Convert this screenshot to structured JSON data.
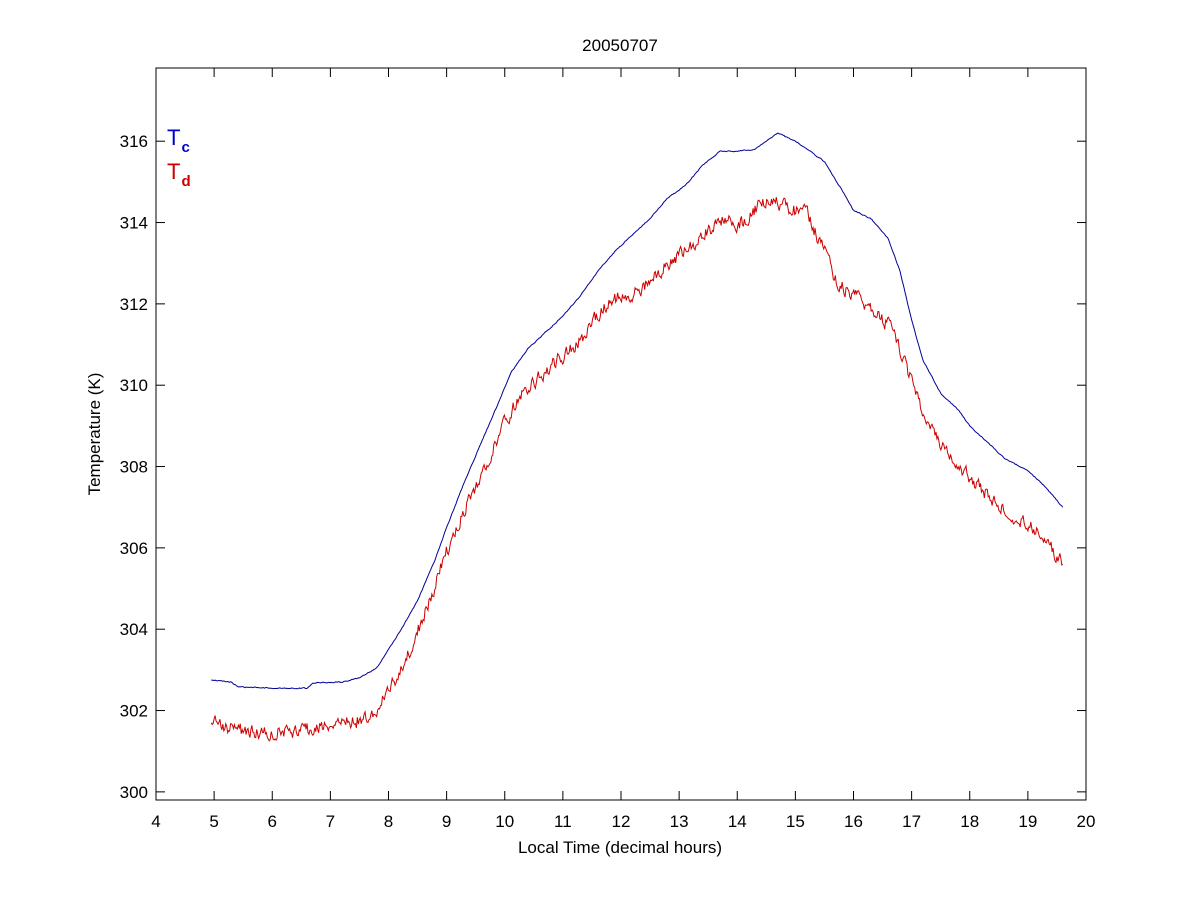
{
  "chart_data": {
    "type": "line",
    "title": "20050707",
    "xlabel": "Local Time (decimal hours)",
    "ylabel": "Temperature (K)",
    "xlim": [
      4,
      20
    ],
    "ylim": [
      299.8,
      317.8
    ],
    "xticks": [
      4,
      5,
      6,
      7,
      8,
      9,
      10,
      11,
      12,
      13,
      14,
      15,
      16,
      17,
      18,
      19,
      20
    ],
    "yticks": [
      300,
      302,
      304,
      306,
      308,
      310,
      312,
      314,
      316
    ],
    "grid": false,
    "legend_position": "top-left",
    "legend": [
      {
        "main": "T",
        "sub": "c",
        "color": "#0000cc"
      },
      {
        "main": "T",
        "sub": "d",
        "color": "#cc0000"
      }
    ],
    "series": [
      {
        "key": "Tc",
        "color": "#000099",
        "noise": 0.02,
        "x": [
          4.95,
          5.3,
          5.4,
          6.0,
          6.6,
          6.7,
          7.2,
          7.5,
          7.8,
          8.0,
          8.2,
          8.5,
          8.8,
          9.0,
          9.3,
          9.6,
          9.9,
          10.1,
          10.4,
          10.7,
          11.0,
          11.3,
          11.6,
          11.9,
          12.2,
          12.5,
          12.8,
          13.1,
          13.4,
          13.7,
          14.0,
          14.3,
          14.5,
          14.7,
          15.0,
          15.3,
          15.5,
          15.8,
          16.0,
          16.3,
          16.6,
          16.8,
          17.0,
          17.2,
          17.5,
          17.8,
          18.0,
          18.3,
          18.6,
          19.0,
          19.3,
          19.6
        ],
        "y": [
          302.75,
          302.7,
          302.58,
          302.55,
          302.55,
          302.68,
          302.7,
          302.8,
          303.05,
          303.5,
          303.95,
          304.7,
          305.7,
          306.5,
          307.6,
          308.6,
          309.6,
          310.3,
          310.9,
          311.3,
          311.7,
          312.2,
          312.8,
          313.3,
          313.7,
          314.1,
          314.6,
          314.9,
          315.4,
          315.75,
          315.75,
          315.8,
          316.0,
          316.2,
          316.0,
          315.7,
          315.5,
          314.8,
          314.3,
          314.1,
          313.6,
          312.8,
          311.6,
          310.6,
          309.8,
          309.4,
          309.0,
          308.6,
          308.2,
          307.9,
          307.5,
          307.0
        ]
      },
      {
        "key": "Td",
        "color": "#cc0000",
        "noise": 0.28,
        "x": [
          4.95,
          5.3,
          5.6,
          6.0,
          6.4,
          6.8,
          7.2,
          7.6,
          7.8,
          8.0,
          8.2,
          8.4,
          8.6,
          8.8,
          9.0,
          9.3,
          9.6,
          9.9,
          10.2,
          10.5,
          10.8,
          11.1,
          11.4,
          11.7,
          12.0,
          12.3,
          12.6,
          12.9,
          13.2,
          13.5,
          13.8,
          14.0,
          14.3,
          14.5,
          14.7,
          15.0,
          15.2,
          15.5,
          15.7,
          16.0,
          16.3,
          16.6,
          16.8,
          17.0,
          17.2,
          17.5,
          17.8,
          18.0,
          18.3,
          18.6,
          19.0,
          19.3,
          19.6
        ],
        "y": [
          301.7,
          301.55,
          301.45,
          301.5,
          301.45,
          301.6,
          301.7,
          301.8,
          302.0,
          302.5,
          302.9,
          303.6,
          304.3,
          305.1,
          305.9,
          306.9,
          307.8,
          308.8,
          309.6,
          310.1,
          310.5,
          310.8,
          311.3,
          311.9,
          312.2,
          312.3,
          312.7,
          313.1,
          313.4,
          313.8,
          314.1,
          313.9,
          314.3,
          314.6,
          314.5,
          314.3,
          314.2,
          313.3,
          312.6,
          312.2,
          311.9,
          311.5,
          310.9,
          310.1,
          309.3,
          308.6,
          308.1,
          307.7,
          307.3,
          306.9,
          306.6,
          306.2,
          305.6
        ]
      }
    ]
  }
}
